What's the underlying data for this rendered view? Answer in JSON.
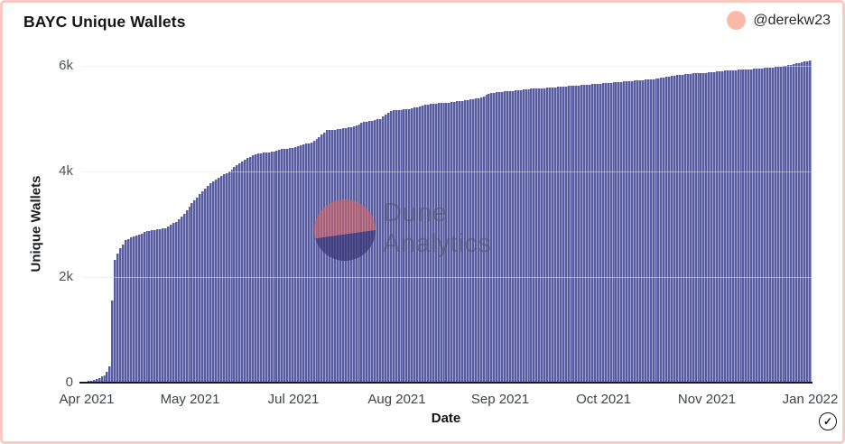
{
  "header": {
    "title": "BAYC Unique Wallets",
    "author": "@derekw23"
  },
  "watermark": {
    "line1": "Dune",
    "line2": "Analytics"
  },
  "badge": {
    "check_glyph": "✓"
  },
  "colors": {
    "bar": "#585c9f",
    "bar_gap": "#a0a3cf",
    "frame_border": "#f8cbc2",
    "avatar": "#fbb9aa",
    "grid": "#e8e8ec",
    "axis_line": "#1a1a1d",
    "watermark_top": "#e2615c",
    "watermark_bottom": "#2d2a6c"
  },
  "chart_data": {
    "type": "bar",
    "title": "BAYC Unique Wallets",
    "xlabel": "Date",
    "ylabel": "Unique Wallets",
    "date_start": "2021-04-01",
    "date_end": "2022-01-01",
    "day_count": 275,
    "ylim": [
      0,
      6400
    ],
    "grid": "horizontal",
    "legend": "none",
    "x_tick_labels": [
      "Apr 2021",
      "May 2021",
      "Jul 2021",
      "Aug 2021",
      "Sep 2021",
      "Oct 2021",
      "Nov 2021",
      "Jan 2022"
    ],
    "y_ticks": [
      {
        "value": 6000,
        "label": "6k"
      },
      {
        "value": 4000,
        "label": "4k"
      },
      {
        "value": 2000,
        "label": "2k"
      },
      {
        "value": 0,
        "label": "0"
      }
    ],
    "gridline_values": [
      6000,
      4000,
      2000
    ],
    "points_unit": "[day index from 2021-04-01, cumulative unique wallets]",
    "points": [
      [
        0,
        15
      ],
      [
        2,
        30
      ],
      [
        4,
        55
      ],
      [
        6,
        90
      ],
      [
        8,
        140
      ],
      [
        9,
        200
      ],
      [
        10,
        300
      ],
      [
        11,
        1560
      ],
      [
        12,
        2320
      ],
      [
        13,
        2450
      ],
      [
        14,
        2550
      ],
      [
        15,
        2620
      ],
      [
        16,
        2700
      ],
      [
        18,
        2750
      ],
      [
        21,
        2800
      ],
      [
        24,
        2870
      ],
      [
        28,
        2900
      ],
      [
        31,
        2930
      ],
      [
        35,
        3050
      ],
      [
        38,
        3200
      ],
      [
        41,
        3400
      ],
      [
        45,
        3620
      ],
      [
        48,
        3780
      ],
      [
        52,
        3920
      ],
      [
        55,
        4000
      ],
      [
        58,
        4120
      ],
      [
        62,
        4250
      ],
      [
        65,
        4330
      ],
      [
        69,
        4360
      ],
      [
        72,
        4380
      ],
      [
        75,
        4420
      ],
      [
        79,
        4450
      ],
      [
        82,
        4500
      ],
      [
        86,
        4550
      ],
      [
        89,
        4650
      ],
      [
        92,
        4780
      ],
      [
        96,
        4800
      ],
      [
        99,
        4820
      ],
      [
        103,
        4870
      ],
      [
        106,
        4940
      ],
      [
        109,
        4960
      ],
      [
        112,
        5000
      ],
      [
        114,
        5080
      ],
      [
        116,
        5150
      ],
      [
        120,
        5170
      ],
      [
        123,
        5180
      ],
      [
        126,
        5220
      ],
      [
        130,
        5270
      ],
      [
        133,
        5290
      ],
      [
        137,
        5300
      ],
      [
        140,
        5320
      ],
      [
        143,
        5340
      ],
      [
        147,
        5370
      ],
      [
        150,
        5400
      ],
      [
        153,
        5470
      ],
      [
        156,
        5500
      ],
      [
        160,
        5520
      ],
      [
        164,
        5540
      ],
      [
        167,
        5560
      ],
      [
        170,
        5570
      ],
      [
        174,
        5580
      ],
      [
        181,
        5610
      ],
      [
        187,
        5630
      ],
      [
        194,
        5660
      ],
      [
        201,
        5690
      ],
      [
        208,
        5720
      ],
      [
        215,
        5750
      ],
      [
        221,
        5800
      ],
      [
        228,
        5850
      ],
      [
        235,
        5870
      ],
      [
        242,
        5910
      ],
      [
        249,
        5930
      ],
      [
        255,
        5950
      ],
      [
        262,
        5980
      ],
      [
        266,
        6010
      ],
      [
        269,
        6050
      ],
      [
        272,
        6080
      ],
      [
        274,
        6100
      ]
    ]
  }
}
